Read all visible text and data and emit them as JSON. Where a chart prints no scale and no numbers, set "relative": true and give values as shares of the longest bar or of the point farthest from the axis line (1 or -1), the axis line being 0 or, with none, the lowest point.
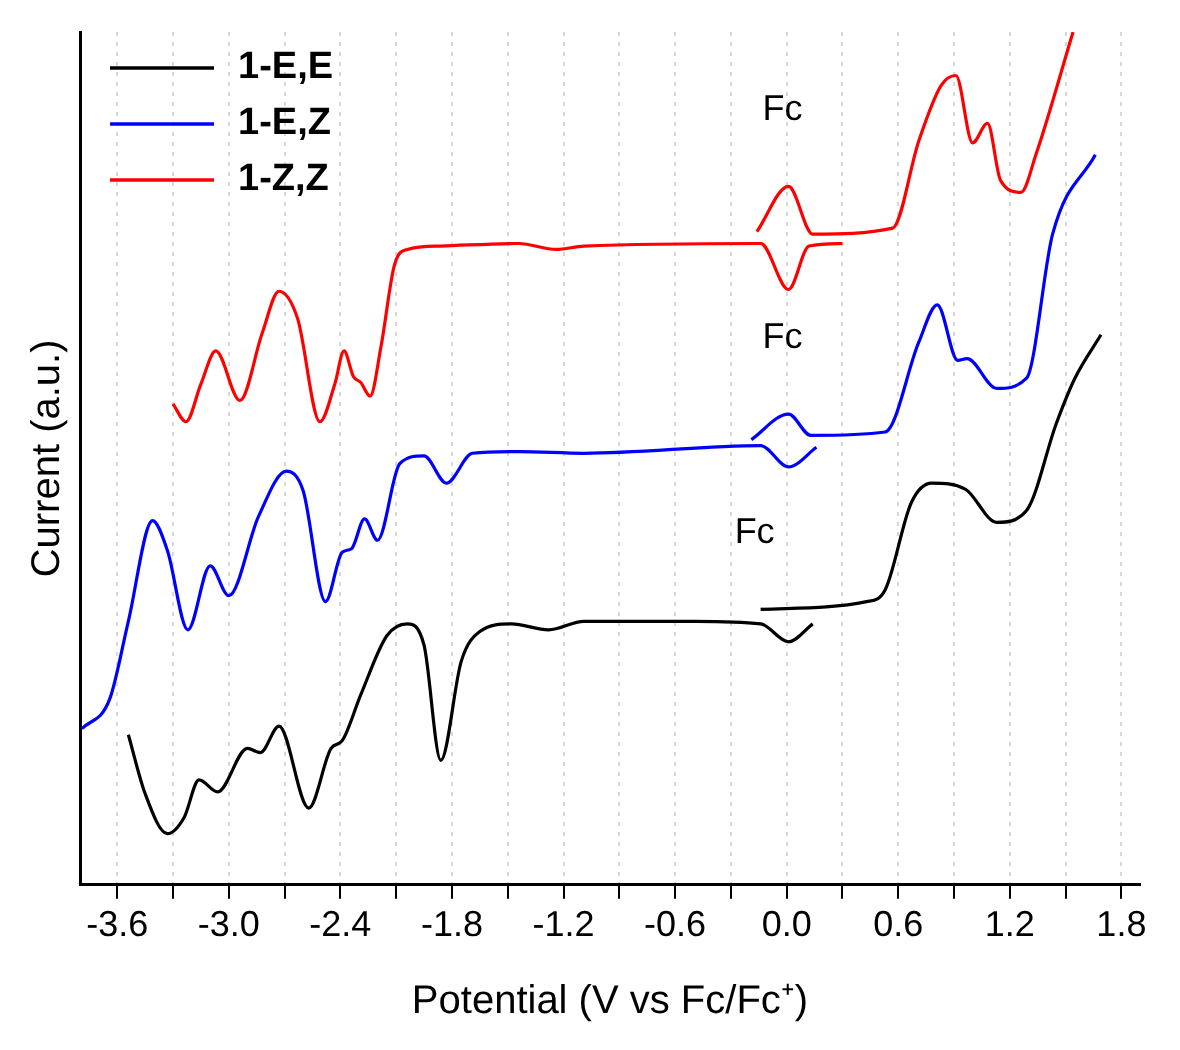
{
  "chart_data": {
    "type": "line",
    "relative": true,
    "xlabel": "Potential (V vs Fc/Fc⁺)",
    "ylabel": "Current (a.u.)",
    "xlim": [
      -3.8,
      1.9
    ],
    "xticks": [
      -3.6,
      {
        "value": -3.3,
        "label": null
      },
      "-3.0",
      {
        "value": -2.7,
        "label": null
      },
      -2.4,
      {
        "value": -2.1,
        "label": null
      },
      -1.8,
      {
        "value": -1.5,
        "label": null
      },
      -1.2,
      {
        "value": -0.9,
        "label": null
      },
      -0.6,
      {
        "value": -0.3,
        "label": null
      },
      {
        "value": 0,
        "label": "0.0"
      },
      {
        "value": 0.3,
        "label": null
      },
      0.6,
      {
        "value": 0.9,
        "label": null
      },
      1.2,
      {
        "value": 1.5,
        "label": null
      },
      1.8
    ],
    "grid": "x",
    "legend": "top left",
    "series": [
      {
        "name": "1-E,E",
        "color": "#000000",
        "x": [
          -3.54,
          -3.45,
          -3.33,
          -3.24,
          -3.16,
          -3.06,
          -2.9,
          -2.83,
          -2.73,
          -2.57,
          -2.45,
          -2.39,
          -2.29,
          -2.15,
          -2.04,
          -1.95,
          -1.86,
          -1.75,
          -1.65,
          -1.48,
          -1.28,
          -1.09,
          -0.49,
          -0.14,
          0.01,
          0.14,
          null,
          -0.14,
          0.43,
          0.53,
          0.67,
          0.78,
          0.96,
          1.13,
          1.29,
          1.45,
          1.55,
          1.69
        ],
        "values": [
          0.176,
          0.107,
          0.06,
          0.079,
          0.123,
          0.109,
          0.16,
          0.155,
          0.186,
          0.09,
          0.16,
          0.169,
          0.223,
          0.292,
          0.306,
          0.281,
          0.146,
          0.262,
          0.297,
          0.306,
          0.299,
          0.309,
          0.309,
          0.306,
          0.285,
          0.306,
          null,
          0.323,
          0.332,
          0.346,
          0.448,
          0.471,
          0.464,
          0.425,
          0.439,
          0.541,
          0.594,
          0.645
        ]
      },
      {
        "name": "1-E,Z",
        "color": "#0000ff",
        "x": [
          -3.79,
          -3.64,
          -3.54,
          -3.41,
          -3.33,
          -3.22,
          -3.1,
          -3.0,
          -2.84,
          -2.69,
          -2.6,
          -2.48,
          -2.39,
          -2.34,
          -2.27,
          -2.2,
          -2.08,
          -1.95,
          -1.83,
          -1.69,
          -1.44,
          -1.09,
          -0.14,
          0.01,
          0.16,
          null,
          -0.19,
          0.01,
          0.13,
          0.53,
          0.71,
          0.81,
          0.92,
          0.97,
          1.13,
          1.29,
          1.43,
          1.66
        ],
        "values": [
          0.183,
          0.218,
          0.309,
          0.427,
          0.392,
          0.299,
          0.374,
          0.339,
          0.432,
          0.485,
          0.462,
          0.332,
          0.39,
          0.394,
          0.429,
          0.404,
          0.494,
          0.503,
          0.471,
          0.506,
          0.508,
          0.506,
          0.515,
          0.49,
          0.513,
          null,
          0.522,
          0.552,
          0.527,
          0.531,
          0.636,
          0.68,
          0.615,
          0.617,
          0.582,
          0.594,
          0.763,
          0.856
        ]
      },
      {
        "name": "1-Z,Z",
        "color": "#ff0000",
        "x": [
          -3.3,
          -3.23,
          -3.15,
          -3.07,
          -2.94,
          -2.82,
          -2.73,
          -2.63,
          -2.51,
          -2.43,
          -2.38,
          -2.33,
          -2.29,
          -2.24,
          -2.18,
          -2.11,
          -2.04,
          -1.86,
          -1.44,
          -1.24,
          -1.09,
          -0.14,
          0.01,
          0.12,
          0.3,
          null,
          -0.16,
          0.01,
          0.14,
          0.57,
          0.71,
          0.83,
          0.91,
          1.0,
          1.08,
          1.15,
          1.26,
          1.34,
          1.54
        ],
        "values": [
          0.564,
          0.543,
          0.587,
          0.626,
          0.568,
          0.647,
          0.696,
          0.664,
          0.543,
          0.587,
          0.626,
          0.596,
          0.589,
          0.573,
          0.633,
          0.726,
          0.745,
          0.749,
          0.752,
          0.745,
          0.749,
          0.752,
          0.698,
          0.749,
          0.752,
          null,
          0.766,
          0.819,
          0.763,
          0.77,
          0.872,
          0.937,
          0.949,
          0.87,
          0.893,
          0.826,
          0.812,
          0.856,
          1.0
        ]
      }
    ],
    "annotations": [
      "Fc",
      "Fc",
      "Fc"
    ]
  }
}
